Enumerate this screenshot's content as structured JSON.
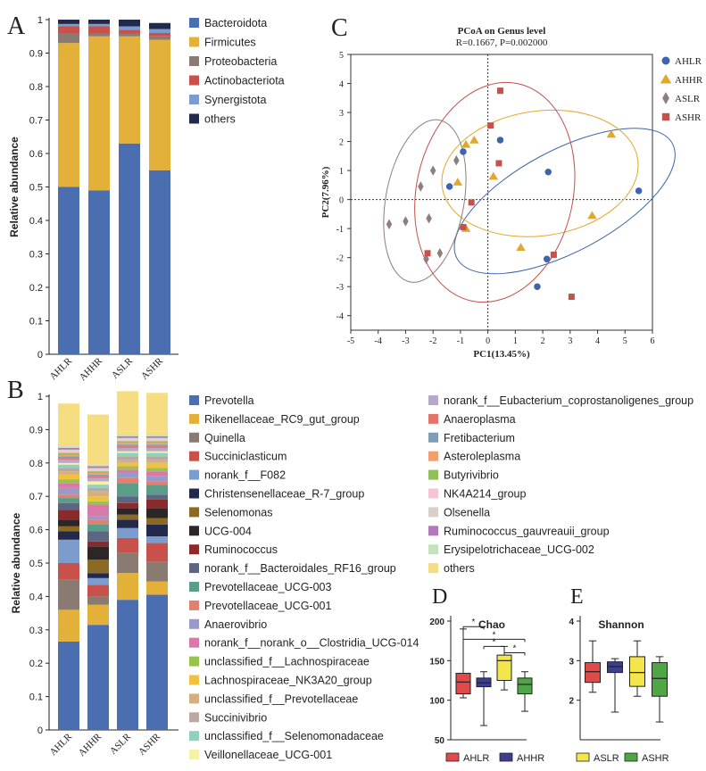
{
  "colors": {
    "Bacteroidota": "#4a6eb0",
    "Firmicutes": "#e3b13a",
    "Proteobacteria": "#8a7b72",
    "Actinobacteriota": "#c8514c",
    "Synergistota": "#7c9ccd",
    "others_phylum": "#23294a",
    "AHLR": "#3e64ad",
    "AHHR": "#e0a82e",
    "ASLR": "#8c7f7d",
    "ASHR": "#c4514c",
    "box_AHLR": "#e24a4a",
    "box_AHHR": "#3c3f8f",
    "box_ASLR": "#f2e64b",
    "box_ASHR": "#4ea646"
  },
  "panel_letters": {
    "a": "A",
    "b": "B",
    "c": "C",
    "d": "D",
    "e": "E"
  },
  "chart_data": [
    {
      "id": "A",
      "type": "bar",
      "stacked": true,
      "categories": [
        "AHLR",
        "AHHR",
        "ASLR",
        "ASHR"
      ],
      "ylabel": "Relative abundance",
      "ylim": [
        0,
        1
      ],
      "yticks": [
        "0",
        "0.1",
        "0.2",
        "0.3",
        "0.4",
        "0.5",
        "0.6",
        "0.7",
        "0.8",
        "0.9",
        "1"
      ],
      "series": [
        {
          "name": "Bacteroidota",
          "values": [
            0.5,
            0.49,
            0.63,
            0.55
          ]
        },
        {
          "name": "Firmicutes",
          "values": [
            0.43,
            0.46,
            0.32,
            0.39
          ]
        },
        {
          "name": "Proteobacteria",
          "values": [
            0.03,
            0.01,
            0.01,
            0.01
          ]
        },
        {
          "name": "Actinobacteriota",
          "values": [
            0.02,
            0.02,
            0.01,
            0.01
          ]
        },
        {
          "name": "Synergistota",
          "values": [
            0.007,
            0.007,
            0.01,
            0.012
          ]
        },
        {
          "name": "others",
          "values": [
            0.013,
            0.013,
            0.02,
            0.018
          ]
        }
      ]
    },
    {
      "id": "B",
      "type": "bar",
      "stacked": true,
      "categories": [
        "AHLR",
        "AHHR",
        "ASLR",
        "ASHR"
      ],
      "ylabel": "Relative abundance",
      "ylim": [
        0,
        1
      ],
      "yticks": [
        "0",
        "0.1",
        "0.2",
        "0.3",
        "0.4",
        "0.5",
        "0.6",
        "0.7",
        "0.8",
        "0.9",
        "1"
      ],
      "series": [
        {
          "name": "Prevotella",
          "color": "#4a6eb0",
          "values": [
            0.265,
            0.315,
            0.39,
            0.405
          ]
        },
        {
          "name": "Rikenellaceae_RC9_gut_group",
          "color": "#e3b13a",
          "values": [
            0.095,
            0.06,
            0.08,
            0.04
          ]
        },
        {
          "name": "Quinella",
          "color": "#8a7b72",
          "values": [
            0.09,
            0.025,
            0.06,
            0.06
          ]
        },
        {
          "name": "Succiniclasticum",
          "color": "#c8514c",
          "values": [
            0.05,
            0.035,
            0.045,
            0.055
          ]
        },
        {
          "name": "norank_f__F082",
          "color": "#7c9ccd",
          "values": [
            0.07,
            0.02,
            0.03,
            0.02
          ]
        },
        {
          "name": "Christensenellaceae_R-7_group",
          "color": "#23294a",
          "values": [
            0.025,
            0.015,
            0.025,
            0.035
          ]
        },
        {
          "name": "Selenomonas",
          "color": "#8b6b24",
          "values": [
            0.015,
            0.04,
            0.015,
            0.02
          ]
        },
        {
          "name": "UCG-004",
          "color": "#2c2626",
          "values": [
            0.02,
            0.04,
            0.02,
            0.03
          ]
        },
        {
          "name": "Ruminococcus",
          "color": "#8b2a2a",
          "values": [
            0.03,
            0.015,
            0.015,
            0.025
          ]
        },
        {
          "name": "norank_f__Bacteroidales_RF16_group",
          "color": "#5c6680",
          "values": [
            0.02,
            0.03,
            0.02,
            0.015
          ]
        },
        {
          "name": "Prevotellaceae_UCG-003",
          "color": "#5a9e8a",
          "values": [
            0.015,
            0.02,
            0.04,
            0.03
          ]
        },
        {
          "name": "Prevotellaceae_UCG-001",
          "color": "#e08070",
          "values": [
            0.01,
            0.015,
            0.015,
            0.01
          ]
        },
        {
          "name": "Anaerovibrio",
          "color": "#9a9ac8",
          "values": [
            0.02,
            0.01,
            0.015,
            0.015
          ]
        },
        {
          "name": "norank_f__norank_o__Clostridia_UCG-014",
          "color": "#d879a9",
          "values": [
            0.015,
            0.035,
            0.01,
            0.015
          ]
        },
        {
          "name": "unclassified_f__Lachnospiraceae",
          "color": "#9ac24f",
          "values": [
            0.01,
            0.01,
            0.01,
            0.01
          ]
        },
        {
          "name": "Lachnospiraceae_NK3A20_group",
          "color": "#f0c040",
          "values": [
            0.015,
            0.015,
            0.01,
            0.015
          ]
        },
        {
          "name": "unclassified_f__Prevotellaceae",
          "color": "#d4b080",
          "values": [
            0.01,
            0.015,
            0.01,
            0.01
          ]
        },
        {
          "name": "Succinivibrio",
          "color": "#b8aaa2",
          "values": [
            0.01,
            0.01,
            0.01,
            0.01
          ]
        },
        {
          "name": "unclassified_f__Selenomonadaceae",
          "color": "#8fd0bf",
          "values": [
            0.01,
            0.01,
            0.01,
            0.01
          ]
        },
        {
          "name": "Veillonellaceae_UCG-001",
          "color": "#f4f1a8",
          "values": [
            0.005,
            0.01,
            0.005,
            0.005
          ]
        },
        {
          "name": "norank_f__Eubacterium_coprostanoligenes_group",
          "color": "#b9a6cc",
          "values": [
            0.01,
            0.01,
            0.01,
            0.01
          ]
        },
        {
          "name": "Anaeroplasma",
          "color": "#e3746d",
          "values": [
            0.005,
            0.005,
            0.005,
            0.005
          ]
        },
        {
          "name": "Fretibacterium",
          "color": "#7f9db5",
          "values": [
            0.005,
            0.005,
            0.005,
            0.005
          ]
        },
        {
          "name": "Asteroleplasma",
          "color": "#f0a070",
          "values": [
            0.005,
            0.005,
            0.005,
            0.005
          ]
        },
        {
          "name": "Butyrivibrio",
          "color": "#8fbf56",
          "values": [
            0.005,
            0.005,
            0.005,
            0.005
          ]
        },
        {
          "name": "NK4A214_group",
          "color": "#f6c4d4",
          "values": [
            0.005,
            0.005,
            0.005,
            0.005
          ]
        },
        {
          "name": "Olsenella",
          "color": "#d9d0c8",
          "values": [
            0.005,
            0.005,
            0.005,
            0.005
          ]
        },
        {
          "name": "Ruminococcus_gauvreauii_group",
          "color": "#b07ab8",
          "values": [
            0.005,
            0.005,
            0.005,
            0.005
          ]
        },
        {
          "name": "Erysipelotrichaceae_UCG-002",
          "color": "#c3e2bd",
          "values": [
            0.005,
            0.005,
            0.005,
            0.005
          ]
        },
        {
          "name": "others",
          "color": "#f7dd82",
          "values": [
            0.128,
            0.15,
            0.13,
            0.125
          ]
        }
      ]
    },
    {
      "id": "C",
      "type": "scatter",
      "title": "PCoA on Genus level",
      "subtitle": "R=0.1667, P=0.002000",
      "xlabel": "PC1(13.45%)",
      "ylabel": "PC2(7.96%)",
      "xlim": [
        -5,
        6
      ],
      "ylim": [
        -4.5,
        5
      ],
      "xticks": [
        -5,
        -4,
        -3,
        -2,
        -1,
        0,
        1,
        2,
        3,
        4,
        5,
        6
      ],
      "yticks": [
        -4,
        -3,
        -2,
        -1,
        0,
        1,
        2,
        3,
        4,
        5
      ],
      "series": [
        {
          "name": "AHLR",
          "marker": "circle",
          "points": [
            [
              0.45,
              2.05
            ],
            [
              -0.9,
              1.65
            ],
            [
              -1.4,
              0.45
            ],
            [
              2.2,
              0.95
            ],
            [
              5.5,
              0.3
            ],
            [
              2.15,
              -2.05
            ],
            [
              1.8,
              -3.0
            ]
          ],
          "ellipse": {
            "cx": 2.8,
            "cy": -0.05,
            "rx": 4.45,
            "ry": 1.75,
            "angle": -28
          }
        },
        {
          "name": "AHHR",
          "marker": "triangle",
          "points": [
            [
              -0.5,
              2.05
            ],
            [
              -0.8,
              1.9
            ],
            [
              -1.1,
              0.6
            ],
            [
              0.2,
              0.8
            ],
            [
              4.5,
              2.25
            ],
            [
              3.8,
              -0.55
            ],
            [
              -0.8,
              -1.0
            ],
            [
              1.2,
              -1.65
            ]
          ],
          "ellipse": {
            "cx": 1.9,
            "cy": 0.9,
            "rx": 3.6,
            "ry": 2.15,
            "angle": -8
          }
        },
        {
          "name": "ASLR",
          "marker": "diamond",
          "points": [
            [
              -2.0,
              1.0
            ],
            [
              -1.15,
              1.35
            ],
            [
              -2.45,
              0.45
            ],
            [
              -2.15,
              -0.65
            ],
            [
              -3.6,
              -0.85
            ],
            [
              -3.0,
              -0.75
            ],
            [
              -1.75,
              -1.85
            ],
            [
              -2.25,
              -2.05
            ]
          ],
          "ellipse": {
            "cx": -2.3,
            "cy": -0.05,
            "rx": 3.0,
            "ry": 1.35,
            "angle": -80
          }
        },
        {
          "name": "ASHR",
          "marker": "square",
          "points": [
            [
              0.45,
              3.75
            ],
            [
              0.1,
              2.55
            ],
            [
              0.4,
              1.25
            ],
            [
              -0.6,
              -0.1
            ],
            [
              -0.9,
              -0.95
            ],
            [
              -2.2,
              -1.85
            ],
            [
              2.4,
              -1.9
            ],
            [
              3.05,
              -3.35
            ]
          ],
          "ellipse": {
            "cx": 0.25,
            "cy": 0.25,
            "rx": 4.05,
            "ry": 2.7,
            "angle": -78
          }
        }
      ]
    },
    {
      "id": "D",
      "type": "box",
      "title": "Chao",
      "ylim": [
        50,
        200
      ],
      "yticks": [
        50,
        100,
        150,
        200
      ],
      "groups": [
        {
          "name": "AHLR",
          "min": 103,
          "q1": 108,
          "median": 123,
          "q3": 134,
          "max": 190
        },
        {
          "name": "AHHR",
          "min": 68,
          "q1": 117,
          "median": 122,
          "q3": 128,
          "max": 136
        },
        {
          "name": "ASLR",
          "min": 113,
          "q1": 125,
          "median": 150,
          "q3": 157,
          "max": 168
        },
        {
          "name": "ASHR",
          "min": 86,
          "q1": 108,
          "median": 120,
          "q3": 128,
          "max": 136
        }
      ],
      "significance": [
        {
          "pair": [
            "AHLR",
            "AHHR"
          ],
          "label": "*"
        },
        {
          "pair": [
            "AHLR",
            "ASHR"
          ],
          "label": "*"
        },
        {
          "pair": [
            "AHHR",
            "ASLR"
          ],
          "label": "*"
        },
        {
          "pair": [
            "ASLR",
            "ASHR"
          ],
          "label": "*"
        }
      ]
    },
    {
      "id": "E",
      "type": "box",
      "title": "Shannon",
      "ylim": [
        1,
        4
      ],
      "yticks": [
        2,
        3,
        4
      ],
      "groups": [
        {
          "name": "AHLR",
          "min": 2.2,
          "q1": 2.45,
          "median": 2.72,
          "q3": 2.95,
          "max": 3.5
        },
        {
          "name": "AHHR",
          "min": 1.7,
          "q1": 2.7,
          "median": 2.85,
          "q3": 2.97,
          "max": 3.05
        },
        {
          "name": "ASLR",
          "min": 2.1,
          "q1": 2.35,
          "median": 2.7,
          "q3": 3.1,
          "max": 3.5
        },
        {
          "name": "ASHR",
          "min": 1.45,
          "q1": 2.1,
          "median": 2.55,
          "q3": 2.95,
          "max": 3.1
        }
      ]
    }
  ],
  "box_legend": [
    "AHLR",
    "AHHR",
    "ASLR",
    "ASHR"
  ]
}
